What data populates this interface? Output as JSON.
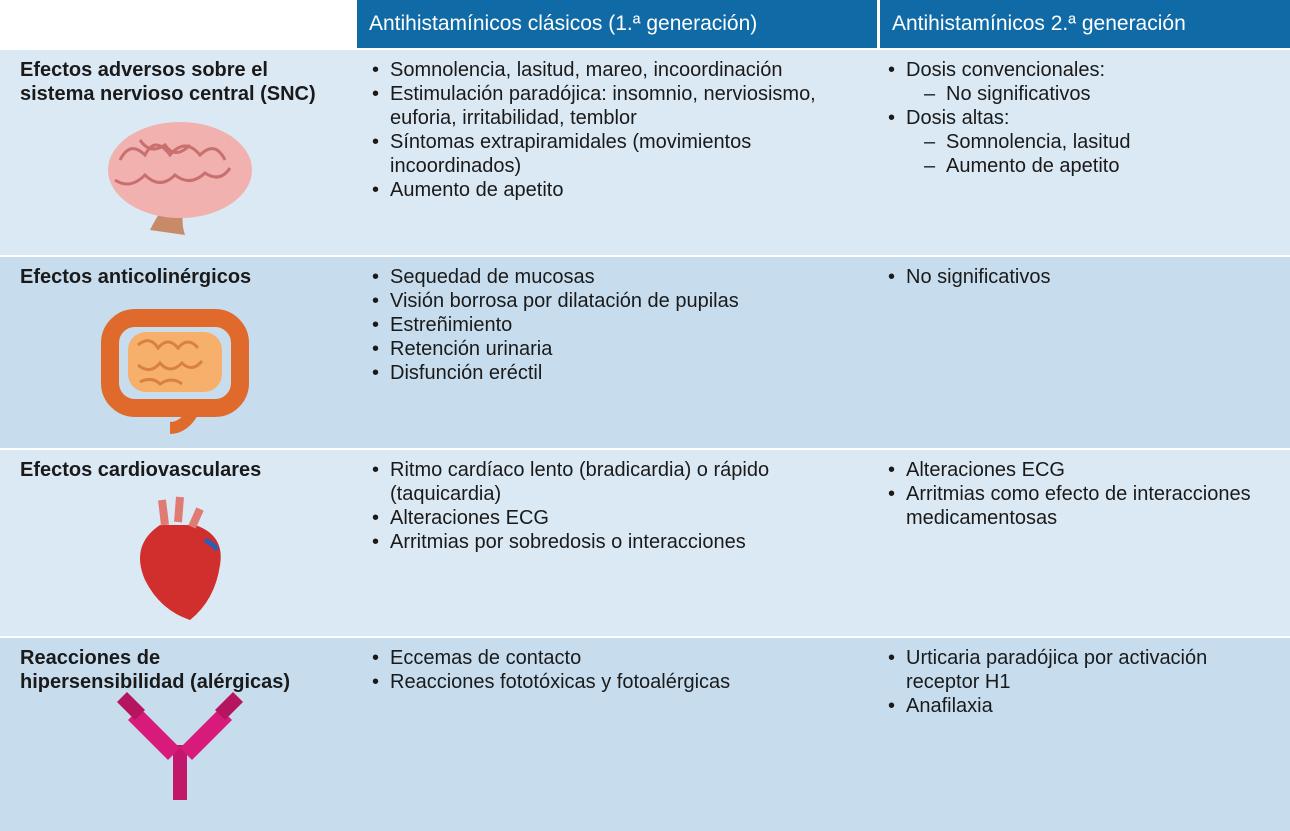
{
  "header": {
    "columns": [
      "Antihistamínicos clásicos (1.ª generación)",
      "Antihistamínicos 2.ª generación"
    ]
  },
  "rows": [
    {
      "label": "Efectos adversos sobre el sistema nervioso central (SNC)",
      "col1": [
        "Somnolencia, lasitud, mareo, incoordinación",
        "Estimulación paradójica: insomnio, nerviosismo, euforia, irritabilidad, temblor",
        "Síntomas extrapiramidales (movimientos incoordinados)",
        "Aumento de apetito"
      ],
      "col2": [
        {
          "text": "Dosis convencionales:",
          "subitems": [
            "No significativos"
          ]
        },
        {
          "text": "Dosis altas:",
          "subitems": [
            "Somnolencia, lasitud",
            "Aumento de apetito"
          ]
        }
      ]
    },
    {
      "label": "Efectos anticolinérgicos",
      "col1": [
        "Sequedad de mucosas",
        "Visión borrosa por dilatación de pupilas",
        "Estreñimiento",
        "Retención urinaria",
        "Disfunción eréctil"
      ],
      "col2": [
        {
          "text": "No significativos"
        }
      ]
    },
    {
      "label": "Efectos cardiovasculares",
      "col1": [
        "Ritmo cardíaco lento (bradicardia) o rápido (taquicardia)",
        "Alteraciones ECG",
        "Arritmias por sobredosis o interacciones"
      ],
      "col2": [
        {
          "text": "Alteraciones ECG"
        },
        {
          "text": "Arritmias como efecto de interacciones medicamentosas"
        }
      ]
    },
    {
      "label": "Reacciones de hipersensibilidad (alérgicas)",
      "col1": [
        "Eccemas de contacto",
        "Reacciones fototóxicas y fotoalérgicas"
      ],
      "col2": [
        {
          "text": "Urticaria paradójica por activación receptor H1"
        },
        {
          "text": "Anafilaxia"
        }
      ]
    }
  ]
}
